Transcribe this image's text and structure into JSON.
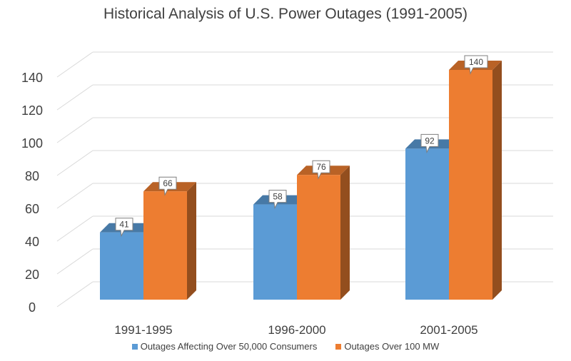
{
  "chart_data": {
    "type": "bar",
    "title": "Historical Analysis of U.S. Power Outages (1991-2005)",
    "xlabel": "",
    "ylabel": "",
    "categories": [
      "1991-1995",
      "1996-2000",
      "2001-2005"
    ],
    "series": [
      {
        "name": "Outages Affecting Over 50,000 Consumers",
        "values": [
          41,
          58,
          92
        ],
        "color": "#5B9BD5"
      },
      {
        "name": "Outages Over 100 MW",
        "values": [
          66,
          76,
          140
        ],
        "color": "#ED7D31"
      }
    ],
    "ylim": [
      0,
      140
    ],
    "yticks": [
      0,
      20,
      40,
      60,
      80,
      100,
      120,
      140
    ],
    "grid": true,
    "style": "3d-column",
    "data_labels": true,
    "legend_position": "bottom"
  }
}
